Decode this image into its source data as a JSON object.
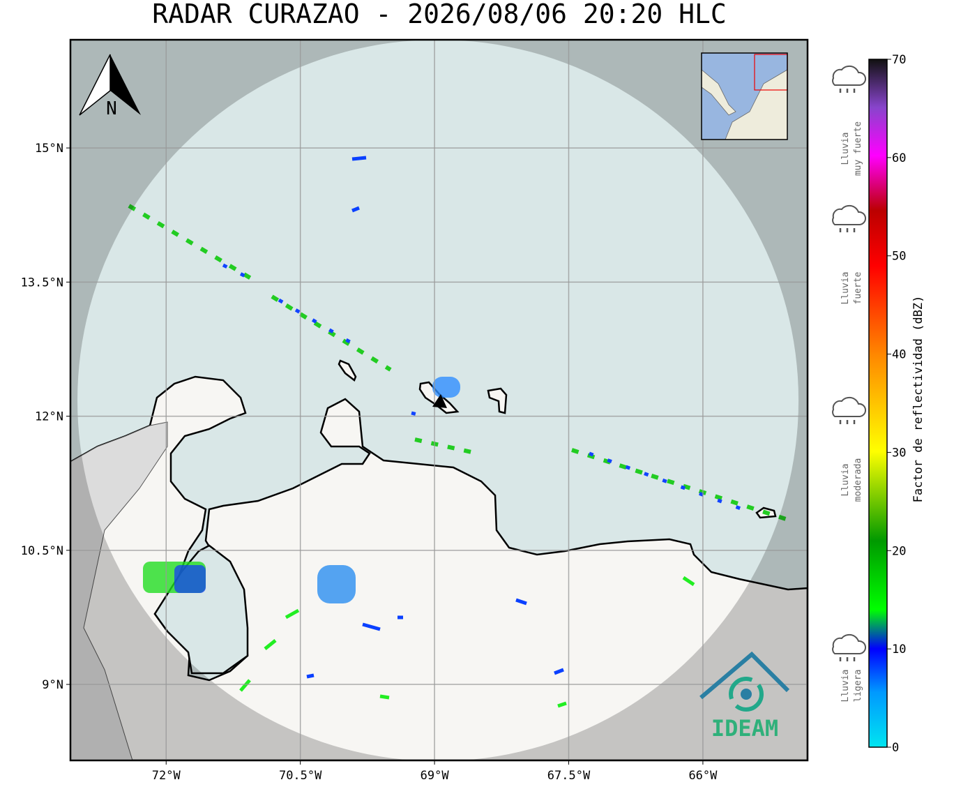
{
  "title": "RADAR CURAZAO - 2026/08/06 20:20 HLC",
  "map": {
    "lonlim": [
      -73.07,
      -64.83
    ],
    "latlim": [
      8.15,
      16.21
    ],
    "lon_ticks": [
      {
        "value": -72,
        "label": "72°W"
      },
      {
        "value": -70.5,
        "label": "70.5°W"
      },
      {
        "value": -69,
        "label": "69°W"
      },
      {
        "value": -67.5,
        "label": "67.5°W"
      },
      {
        "value": -66,
        "label": "66°W"
      }
    ],
    "lat_ticks": [
      {
        "value": 15,
        "label": "15°N"
      },
      {
        "value": 13.5,
        "label": "13.5°N"
      },
      {
        "value": 12,
        "label": "12°N"
      },
      {
        "value": 10.5,
        "label": "10.5°N"
      },
      {
        "value": 9,
        "label": "9°N"
      }
    ],
    "north": "N",
    "logo": "IDEAM"
  },
  "colorbar": {
    "label": "Factor de reflectividad (dBZ)",
    "lim": [
      0,
      70
    ],
    "ticks": [
      0,
      10,
      20,
      30,
      40,
      50,
      60,
      70
    ]
  },
  "legend": [
    {
      "lines": [
        "Lluvia",
        "muy fuerte"
      ]
    },
    {
      "lines": [
        "Lluvia",
        "fuerte"
      ]
    },
    {
      "lines": [
        "Lluvia",
        "moderada"
      ]
    },
    {
      "lines": [
        "Lluvia",
        "ligera"
      ]
    }
  ]
}
